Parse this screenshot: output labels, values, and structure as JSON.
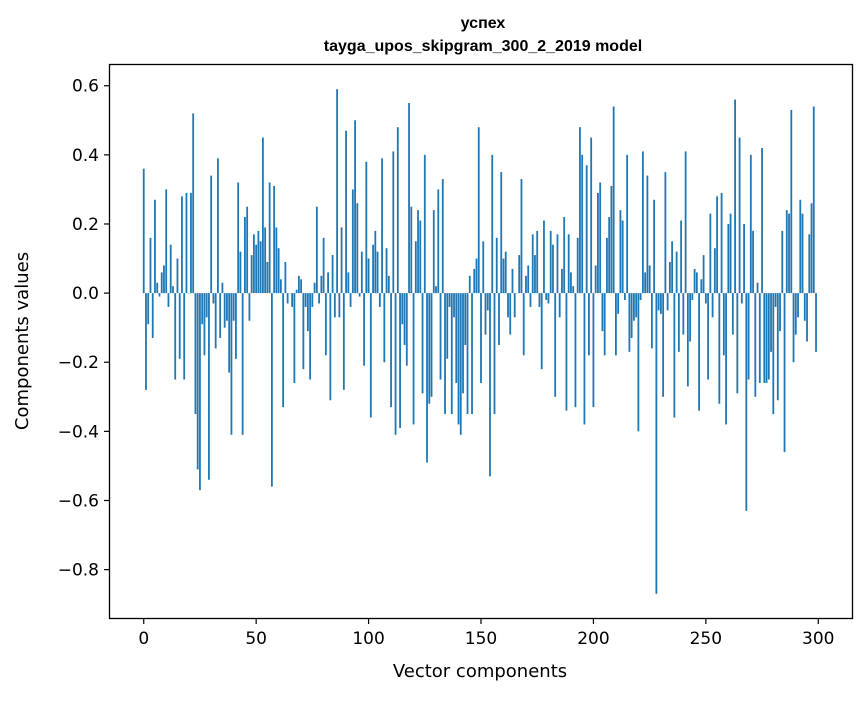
{
  "chart_data": {
    "type": "bar",
    "title": "успех",
    "subtitle": "tayga_upos_skipgram_300_2_2019 model",
    "xlabel": "Vector components",
    "ylabel": "Components values",
    "xlim": [
      -15,
      315
    ],
    "ylim": [
      -0.94,
      0.66
    ],
    "xticks": [
      0,
      50,
      100,
      150,
      200,
      250,
      300
    ],
    "xtick_labels": [
      "0",
      "50",
      "100",
      "150",
      "200",
      "250",
      "300"
    ],
    "yticks": [
      0.6,
      0.4,
      0.2,
      0.0,
      -0.2,
      -0.4,
      -0.6,
      -0.8
    ],
    "ytick_labels": [
      "0.6",
      "0.4",
      "0.2",
      "0.0",
      "−0.2",
      "−0.4",
      "−0.6",
      "−0.8"
    ],
    "grid": false,
    "color": "#1f77b4",
    "x": "0..299",
    "values": [
      0.36,
      -0.28,
      -0.09,
      0.16,
      -0.13,
      0.27,
      0.03,
      -0.01,
      0.06,
      0.08,
      0.3,
      -0.04,
      0.14,
      0.02,
      -0.25,
      0.1,
      -0.19,
      0.28,
      -0.25,
      0.29,
      0.0,
      0.29,
      0.52,
      -0.35,
      -0.51,
      -0.57,
      -0.09,
      -0.18,
      -0.07,
      -0.54,
      0.34,
      -0.03,
      -0.16,
      0.39,
      -0.13,
      0.03,
      -0.1,
      -0.08,
      -0.23,
      -0.41,
      -0.08,
      -0.19,
      0.32,
      0.12,
      -0.41,
      0.22,
      0.25,
      -0.08,
      0.11,
      0.17,
      0.14,
      0.18,
      0.15,
      0.45,
      0.19,
      0.09,
      0.32,
      -0.56,
      0.31,
      0.19,
      0.13,
      0.04,
      -0.33,
      0.09,
      -0.03,
      0.0,
      -0.04,
      -0.26,
      0.01,
      0.05,
      0.04,
      -0.22,
      -0.04,
      -0.11,
      -0.25,
      -0.04,
      0.03,
      0.25,
      -0.03,
      0.05,
      0.16,
      -0.18,
      0.06,
      -0.31,
      0.11,
      -0.07,
      0.59,
      -0.07,
      0.19,
      -0.28,
      0.47,
      0.06,
      -0.04,
      0.3,
      0.5,
      0.26,
      -0.01,
      0.12,
      -0.21,
      0.38,
      0.1,
      -0.36,
      0.14,
      0.18,
      0.12,
      -0.04,
      0.39,
      -0.2,
      0.13,
      0.05,
      -0.33,
      0.41,
      -0.41,
      0.48,
      -0.39,
      -0.09,
      -0.15,
      -0.21,
      0.55,
      0.25,
      -0.38,
      0.15,
      0.24,
      0.21,
      -0.29,
      0.4,
      -0.49,
      -0.32,
      -0.3,
      0.24,
      0.02,
      0.3,
      -0.25,
      0.33,
      -0.35,
      -0.19,
      -0.04,
      -0.35,
      -0.07,
      -0.26,
      -0.38,
      -0.41,
      -0.29,
      -0.15,
      -0.35,
      0.05,
      -0.35,
      0.07,
      0.1,
      0.48,
      -0.26,
      0.15,
      -0.12,
      -0.05,
      -0.53,
      0.4,
      -0.35,
      0.16,
      -0.15,
      0.35,
      0.1,
      0.12,
      -0.07,
      -0.12,
      0.07,
      -0.07,
      0.0,
      0.11,
      0.33,
      -0.18,
      0.05,
      0.08,
      -0.04,
      0.17,
      0.11,
      0.18,
      -0.04,
      -0.22,
      0.21,
      -0.02,
      -0.03,
      0.18,
      0.14,
      -0.3,
      0.17,
      -0.07,
      0.07,
      0.22,
      -0.34,
      0.17,
      0.06,
      0.02,
      -0.33,
      0.16,
      0.48,
      0.4,
      -0.38,
      0.37,
      -0.18,
      0.45,
      -0.33,
      0.08,
      0.29,
      0.32,
      -0.11,
      -0.18,
      0.16,
      0.22,
      0.31,
      0.54,
      -0.18,
      -0.06,
      0.24,
      0.21,
      -0.02,
      0.4,
      -0.17,
      -0.13,
      -0.08,
      -0.07,
      -0.4,
      -0.02,
      0.41,
      0.06,
      0.34,
      0.08,
      -0.16,
      0.27,
      -0.87,
      -0.05,
      -0.06,
      -0.3,
      0.35,
      -0.05,
      0.09,
      0.15,
      -0.36,
      0.12,
      -0.17,
      0.21,
      -0.12,
      0.41,
      -0.27,
      -0.14,
      -0.02,
      0.07,
      0.06,
      -0.34,
      0.04,
      0.11,
      -0.03,
      -0.25,
      0.23,
      -0.07,
      0.13,
      0.28,
      -0.32,
      0.29,
      -0.18,
      -0.38,
      0.2,
      0.23,
      -0.12,
      0.56,
      -0.29,
      0.45,
      -0.03,
      0.2,
      -0.63,
      -0.25,
      0.4,
      0.18,
      -0.3,
      0.03,
      -0.26,
      0.42,
      -0.26,
      -0.26,
      -0.25,
      -0.17,
      -0.35,
      -0.04,
      -0.31,
      -0.11,
      0.18,
      -0.46,
      0.24,
      0.23,
      0.53,
      -0.2,
      -0.12,
      -0.07,
      0.27,
      0.23,
      -0.08,
      -0.14,
      0.17,
      0.26,
      0.54,
      -0.17
    ]
  }
}
